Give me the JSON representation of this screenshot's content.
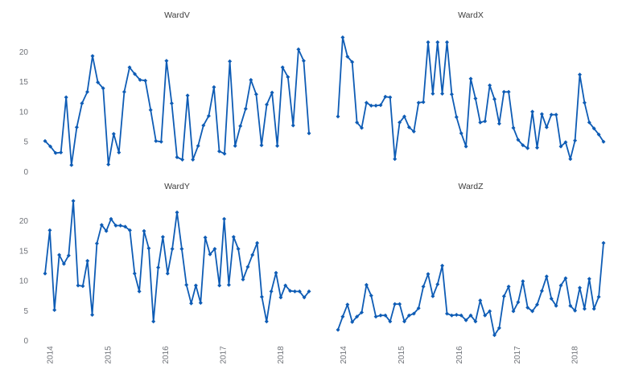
{
  "figure": {
    "background": "#ffffff",
    "y_axis_ticks": [
      "0",
      "5",
      "10",
      "15",
      "20"
    ],
    "x_axis_tick_labels": [
      "2014",
      "2015",
      "2016",
      "2017",
      "2018"
    ]
  },
  "styles": {
    "line_color": "#0E5CB5",
    "marker_color": "#0E5CB5",
    "tick_label_color": "#6f7278",
    "title_color": "#3d3d3d"
  },
  "chart_data": [
    {
      "type": "line",
      "title": "WardV",
      "panel": "top-left",
      "x_start": "2013-12",
      "x_end": "2018-06",
      "x_tick_labels": [
        "2014",
        "2015",
        "2016",
        "2017",
        "2018"
      ],
      "y_ticks": [
        0,
        5,
        10,
        15,
        20
      ],
      "ylim": [
        0,
        23.5
      ],
      "grid": false,
      "legend": "none",
      "values": [
        5.1,
        4.2,
        3.1,
        3.2,
        12.4,
        1.1,
        7.4,
        11.4,
        13.3,
        19.3,
        14.9,
        13.9,
        1.2,
        6.3,
        3.2,
        13.3,
        17.4,
        16.3,
        15.3,
        15.2,
        10.3,
        5.1,
        5.0,
        18.5,
        11.4,
        2.4,
        2.0,
        12.7,
        2.0,
        4.3,
        7.7,
        9.3,
        14.1,
        3.4,
        3.0,
        18.4,
        4.3,
        7.6,
        10.5,
        15.3,
        12.9,
        4.4,
        11.2,
        13.2,
        4.3,
        17.4,
        15.8,
        7.7,
        20.4,
        18.5,
        6.4
      ]
    },
    {
      "type": "line",
      "title": "WardX",
      "panel": "top-right",
      "x_start": "2013-12",
      "x_end": "2018-06",
      "x_tick_labels": [
        "2014",
        "2015",
        "2016",
        "2017",
        "2018"
      ],
      "y_ticks": [
        0,
        5,
        10,
        15,
        20
      ],
      "ylim": [
        0,
        23.5
      ],
      "grid": false,
      "legend": "none",
      "values": [
        9.2,
        22.4,
        19.2,
        18.3,
        8.2,
        7.3,
        11.5,
        11.0,
        11.0,
        11.1,
        12.5,
        12.4,
        2.1,
        8.2,
        9.2,
        7.4,
        6.7,
        11.5,
        11.6,
        21.6,
        13.0,
        21.6,
        13.0,
        21.6,
        12.9,
        9.1,
        6.4,
        4.2,
        15.5,
        12.2,
        8.2,
        8.4,
        14.4,
        12.1,
        8.0,
        13.3,
        13.3,
        7.3,
        5.3,
        4.4,
        3.9,
        10.0,
        4.0,
        9.6,
        7.4,
        9.5,
        9.5,
        4.2,
        4.9,
        2.1,
        5.2,
        16.2,
        11.5,
        8.2,
        7.2,
        6.2,
        5.0
      ]
    },
    {
      "type": "line",
      "title": "WardY",
      "panel": "bottom-left",
      "x_start": "2013-12",
      "x_end": "2018-06",
      "x_tick_labels": [
        "2014",
        "2015",
        "2016",
        "2017",
        "2018"
      ],
      "y_ticks": [
        0,
        5,
        10,
        15,
        20
      ],
      "ylim": [
        0,
        23.5
      ],
      "grid": false,
      "legend": "none",
      "values": [
        11.2,
        18.4,
        5.1,
        14.3,
        12.8,
        14.2,
        23.3,
        9.2,
        9.1,
        13.3,
        4.3,
        16.2,
        19.3,
        18.3,
        20.3,
        19.2,
        19.2,
        19.0,
        18.4,
        11.2,
        8.2,
        18.3,
        15.4,
        3.2,
        12.2,
        17.3,
        11.2,
        15.3,
        21.4,
        15.3,
        9.3,
        6.2,
        9.2,
        6.3,
        17.2,
        14.4,
        15.3,
        9.2,
        20.3,
        9.3,
        17.3,
        15.3,
        10.2,
        12.3,
        14.3,
        16.3,
        7.3,
        3.2,
        8.2,
        11.3,
        7.2,
        9.2,
        8.3,
        8.2,
        8.2,
        7.2,
        8.2
      ]
    },
    {
      "type": "line",
      "title": "WardZ",
      "panel": "bottom-right",
      "x_start": "2013-12",
      "x_end": "2018-06",
      "x_tick_labels": [
        "2014",
        "2015",
        "2016",
        "2017",
        "2018"
      ],
      "y_ticks": [
        0,
        5,
        10,
        15,
        20
      ],
      "ylim": [
        0,
        23.5
      ],
      "grid": false,
      "legend": "none",
      "values": [
        1.8,
        4.0,
        6.0,
        3.1,
        4.0,
        4.7,
        9.3,
        7.5,
        4.0,
        4.2,
        4.2,
        3.2,
        6.1,
        6.1,
        3.2,
        4.2,
        4.5,
        5.4,
        9.0,
        11.1,
        7.4,
        9.4,
        12.5,
        4.5,
        4.2,
        4.3,
        4.2,
        3.4,
        4.2,
        3.2,
        6.7,
        4.2,
        4.9,
        0.9,
        2.1,
        7.4,
        9.0,
        4.9,
        6.4,
        9.9,
        5.5,
        4.9,
        6.0,
        8.3,
        10.7,
        7.0,
        5.8,
        9.2,
        10.4,
        5.8,
        5.0,
        8.8,
        5.3,
        10.3,
        5.3,
        7.3,
        16.3
      ]
    }
  ]
}
